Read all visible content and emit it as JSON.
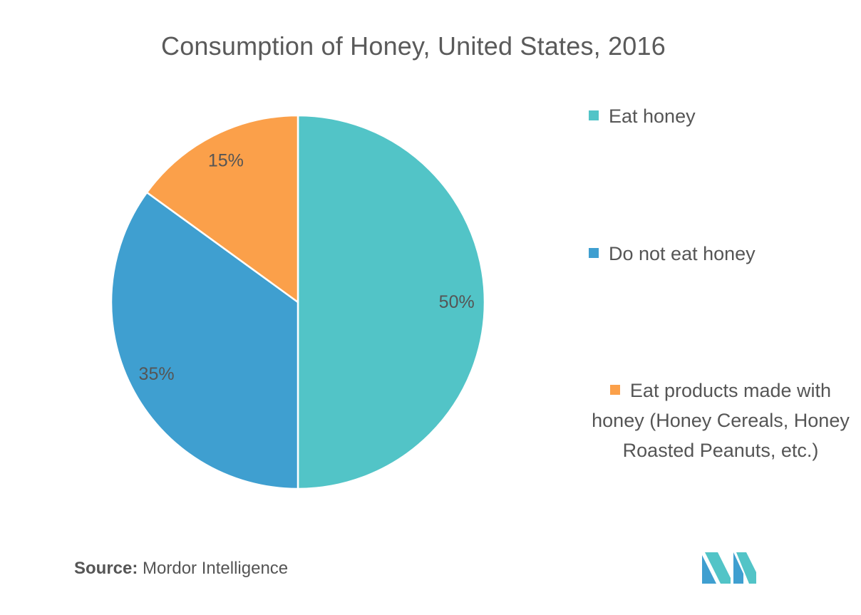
{
  "chart_data": {
    "type": "pie",
    "title": "Consumption of Honey, United States, 2016",
    "slices": [
      {
        "label": "Eat honey",
        "value": 50,
        "display": "50%",
        "color": "#52C4C7"
      },
      {
        "label": "Do not eat honey",
        "value": 35,
        "display": "35%",
        "color": "#3F9FD0"
      },
      {
        "label": "Eat products made with honey (Honey Cereals, Honey Roasted Peanuts, etc.)",
        "value": 15,
        "display": "15%",
        "color": "#FBA04A"
      }
    ],
    "legend_position": "right"
  },
  "source": {
    "key": "Source:",
    "value": "Mordor Intelligence"
  },
  "logo": {
    "icon": "mordor-intelligence-logo",
    "colors": [
      "#3F9FD0",
      "#52C4C7",
      "#2E7FB0"
    ]
  }
}
